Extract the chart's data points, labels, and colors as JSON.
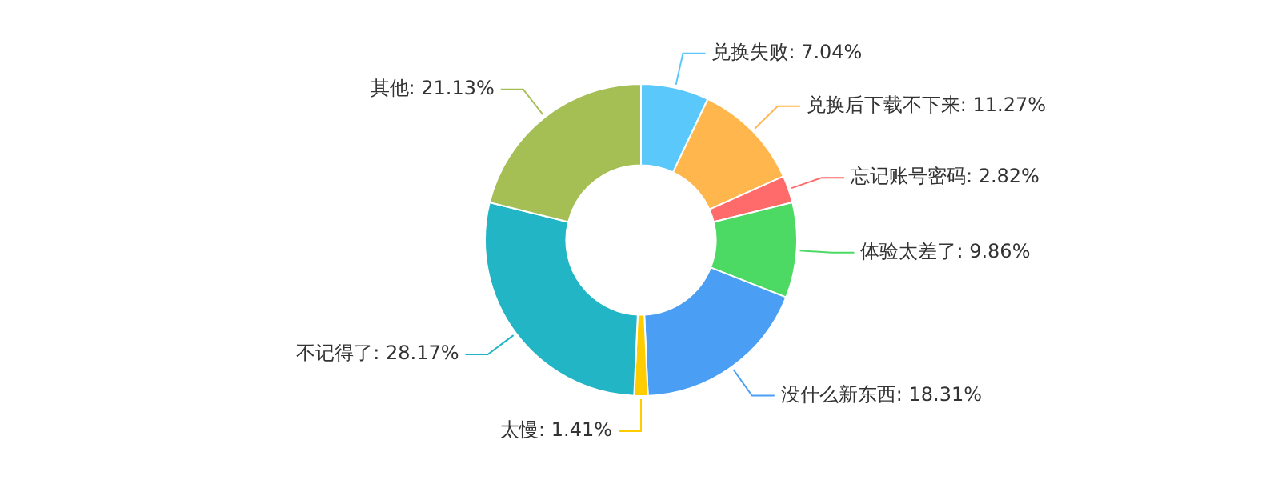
{
  "chart_data": {
    "type": "donut",
    "categories": [
      "兑换失败",
      "兑换后下载不下来",
      "忘记账号密码",
      "体验太差了",
      "没什么新东西",
      "太慢",
      "不记得了",
      "其他"
    ],
    "values": [
      7.04,
      11.27,
      2.82,
      9.86,
      18.31,
      1.41,
      28.17,
      21.13
    ],
    "colors": [
      "#5ac8fa",
      "#ffb74d",
      "#ff6b6b",
      "#4cd964",
      "#4a9ff5",
      "#ffcc00",
      "#22b5c5",
      "#a5bf55"
    ],
    "value_labels": [
      "7.04%",
      "11.27%",
      "2.82%",
      "9.86%",
      "18.31%",
      "1.41%",
      "28.17%",
      "21.13%"
    ],
    "legend": false
  }
}
